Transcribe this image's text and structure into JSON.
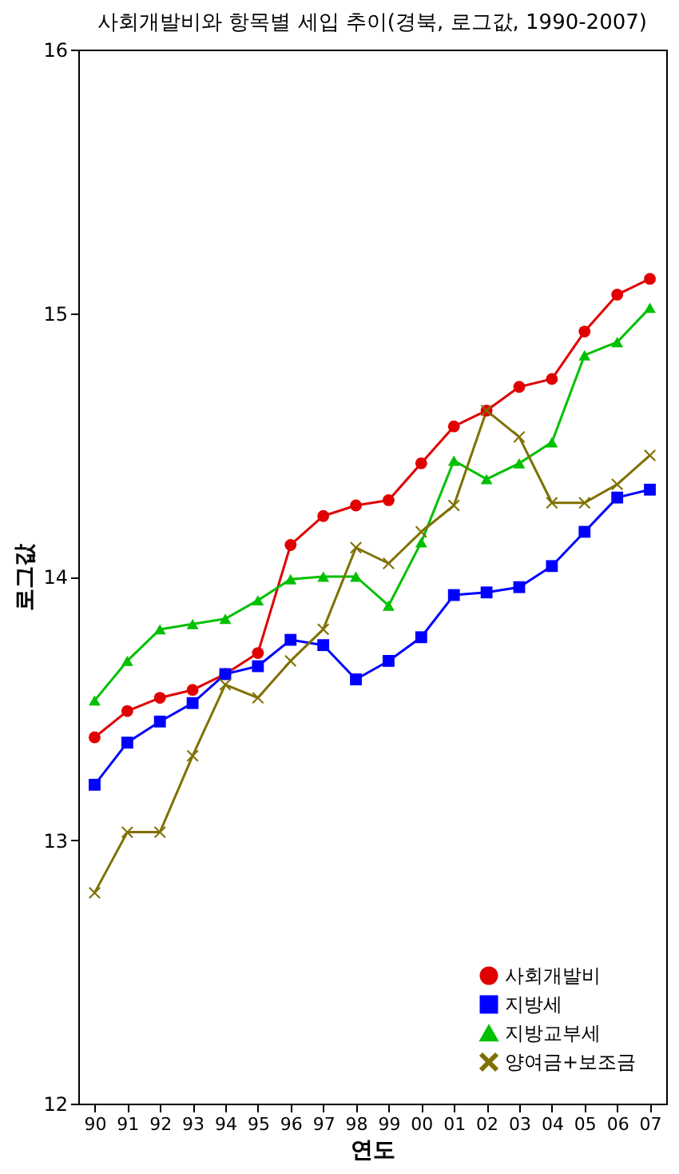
{
  "chart_data": {
    "type": "line",
    "title": "사회개발비와 항목별 세입 추이(경북, 로그값, 1990-2007)",
    "xlabel": "연도",
    "ylabel": "로그값",
    "categories": [
      "90",
      "91",
      "92",
      "93",
      "94",
      "95",
      "96",
      "97",
      "98",
      "99",
      "00",
      "01",
      "02",
      "03",
      "04",
      "05",
      "06",
      "07"
    ],
    "ylim": [
      12,
      16
    ],
    "yticks": [
      {
        "value": 12,
        "label": "12"
      },
      {
        "value": 13,
        "label": "13"
      },
      {
        "value": 14,
        "label": "14"
      },
      {
        "value": 15,
        "label": "15"
      },
      {
        "value": 16,
        "label": "16"
      }
    ],
    "grid": false,
    "legend": "bottom right",
    "line_style": "solid",
    "series": [
      {
        "name": "사회개발비",
        "color": "#e00000",
        "marker": "circle",
        "values": [
          13.39,
          13.49,
          13.54,
          13.57,
          13.63,
          13.71,
          14.12,
          14.23,
          14.27,
          14.29,
          14.43,
          14.57,
          14.63,
          14.72,
          14.75,
          14.93,
          15.07,
          15.13
        ]
      },
      {
        "name": "지방세",
        "color": "#0000ff",
        "marker": "square",
        "values": [
          13.21,
          13.37,
          13.45,
          13.52,
          13.63,
          13.66,
          13.76,
          13.74,
          13.61,
          13.68,
          13.77,
          13.93,
          13.94,
          13.96,
          14.04,
          14.17,
          14.3,
          14.33
        ]
      },
      {
        "name": "지방교부세",
        "color": "#00c000",
        "marker": "triangle",
        "values": [
          13.53,
          13.68,
          13.8,
          13.82,
          13.84,
          13.91,
          13.99,
          14.0,
          14.0,
          13.89,
          14.13,
          14.44,
          14.37,
          14.43,
          14.51,
          14.84,
          14.89,
          15.02
        ]
      },
      {
        "name": "양여금+보조금",
        "color": "#807000",
        "marker": "cross",
        "values": [
          12.8,
          13.03,
          13.03,
          13.32,
          13.59,
          13.54,
          13.68,
          13.8,
          14.11,
          14.05,
          14.17,
          14.27,
          14.63,
          14.53,
          14.28,
          14.28,
          14.35,
          14.46
        ]
      }
    ]
  }
}
